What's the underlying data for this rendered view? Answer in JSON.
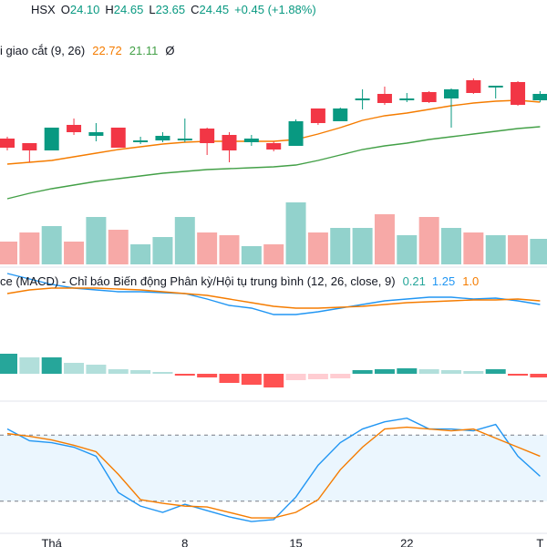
{
  "chart_data": [
    {
      "type": "candlestick",
      "exchange": "HSX",
      "ohlc_labels": [
        "O",
        "H",
        "L",
        "C"
      ],
      "ohlc_values": [
        24.1,
        24.65,
        23.65,
        24.45
      ],
      "ohlc_value_labels": [
        "24.10",
        "24.65",
        "23.65",
        "24.45"
      ],
      "change_label": "+0.45 (+1.88%)",
      "indicator": {
        "title": "i giao cắt (9, 26)",
        "values": [
          22.72,
          21.11
        ],
        "symbol": "Ø"
      },
      "up_color": "#089981",
      "down_color": "#f23645",
      "ylim": [
        14.5,
        25
      ],
      "open": [
        18.4,
        18.15,
        17.75,
        19.15,
        18.55,
        19.0,
        18.2,
        18.3,
        18.3,
        18.95,
        18.6,
        18.2,
        18.15,
        18.0,
        20.05,
        19.35,
        20.5,
        20.85,
        20.5,
        20.95,
        20.6,
        21.6,
        21.2,
        21.5,
        20.5
      ],
      "high": [
        18.5,
        18.15,
        19.0,
        19.5,
        19.25,
        19.0,
        18.5,
        18.75,
        19.5,
        19.0,
        18.75,
        18.6,
        18.25,
        19.45,
        20.05,
        20.1,
        21.1,
        21.25,
        20.9,
        21.0,
        21.15,
        21.7,
        21.3,
        21.55,
        21.0
      ],
      "low": [
        17.75,
        17.1,
        17.75,
        18.6,
        18.25,
        17.9,
        18.1,
        18.2,
        18.2,
        17.5,
        17.1,
        18.0,
        17.7,
        18.0,
        19.15,
        19.35,
        20.0,
        20.25,
        20.4,
        20.35,
        19.0,
        20.85,
        20.6,
        20.2,
        20.4
      ],
      "close": [
        17.9,
        17.75,
        19.0,
        18.75,
        18.75,
        17.9,
        18.3,
        18.55,
        18.4,
        18.15,
        17.75,
        18.4,
        17.8,
        19.35,
        19.25,
        20.05,
        20.6,
        20.35,
        20.6,
        20.4,
        21.1,
        20.9,
        21.3,
        20.25,
        20.85
      ],
      "series": [
        {
          "color": "#f57c00",
          "values": [
            17.0,
            17.1,
            17.2,
            17.4,
            17.6,
            17.8,
            17.95,
            18.1,
            18.2,
            18.25,
            18.25,
            18.25,
            18.25,
            18.35,
            18.65,
            19.0,
            19.4,
            19.65,
            19.8,
            20.0,
            20.2,
            20.35,
            20.45,
            20.5,
            20.4
          ]
        },
        {
          "color": "#43a047",
          "values": [
            15.1,
            15.4,
            15.65,
            15.85,
            16.05,
            16.2,
            16.35,
            16.5,
            16.6,
            16.7,
            16.75,
            16.8,
            16.85,
            16.95,
            17.2,
            17.5,
            17.8,
            18.0,
            18.15,
            18.35,
            18.5,
            18.65,
            18.8,
            18.95,
            19.05
          ]
        }
      ]
    },
    {
      "type": "volume",
      "up_color": "#92d2cc",
      "down_color": "#f7a9a7",
      "ylim": [
        0,
        80
      ],
      "values": [
        25,
        35,
        42,
        25,
        52,
        38,
        22,
        30,
        52,
        35,
        32,
        20,
        22,
        68,
        35,
        40,
        40,
        55,
        32,
        52,
        40,
        35,
        32,
        32,
        28
      ]
    },
    {
      "type": "macd",
      "title": "ce (MACD) - Chỉ báo Biến động Phân kỳ/Hội tụ trung bình (12, 26, close, 9)",
      "legend_values": [
        0.21,
        1.25,
        1.0
      ],
      "legend_value_labels": [
        "0.21",
        "1.25",
        "1.0"
      ],
      "legend_colors": [
        "#26a69a",
        "#2196f3",
        "#f57c00"
      ],
      "ylim": [
        -1.25,
        5.75
      ],
      "histogram": [
        1.1,
        0.9,
        0.9,
        0.6,
        0.5,
        0.25,
        0.2,
        0.1,
        -0.1,
        -0.2,
        -0.5,
        -0.6,
        -0.75,
        -0.35,
        -0.3,
        -0.25,
        0.2,
        0.25,
        0.3,
        0.25,
        0.2,
        0.15,
        0.25,
        -0.1,
        -0.2
      ],
      "histogram_colors": [
        "#26a69a",
        "#b2dfdb",
        "#ff5252",
        "#ffcdd2"
      ],
      "series": [
        {
          "color": "#2196f3",
          "values": [
            5.5,
            5.2,
            4.9,
            4.7,
            4.6,
            4.5,
            4.5,
            4.45,
            4.4,
            4.1,
            3.75,
            3.6,
            3.25,
            3.25,
            3.4,
            3.6,
            3.8,
            4.0,
            4.1,
            4.2,
            4.2,
            4.1,
            4.15,
            4.0,
            3.8
          ]
        },
        {
          "color": "#f57c00",
          "values": [
            4.4,
            4.6,
            4.7,
            4.7,
            4.7,
            4.65,
            4.6,
            4.5,
            4.4,
            4.3,
            4.1,
            3.9,
            3.7,
            3.6,
            3.6,
            3.65,
            3.7,
            3.8,
            3.9,
            3.95,
            4.0,
            4.05,
            4.05,
            4.1,
            4.0
          ]
        }
      ]
    },
    {
      "type": "line",
      "ylim": [
        0,
        100
      ],
      "bands": [
        20,
        80
      ],
      "band_color": "#e3f2fd",
      "categories": [
        null,
        null,
        "Thá",
        null,
        null,
        null,
        null,
        null,
        "8",
        null,
        null,
        null,
        null,
        "15",
        null,
        null,
        null,
        null,
        "22",
        null,
        null,
        null,
        null,
        null,
        "T"
      ],
      "series": [
        {
          "color": "#2196f3",
          "values": [
            85.5,
            74.8,
            73.1,
            69.0,
            60.8,
            27.9,
            15.6,
            9.9,
            17.3,
            11.5,
            5.8,
            1.6,
            3.3,
            23.8,
            52.6,
            73.1,
            85.5,
            92.0,
            95.3,
            85.5,
            85.5,
            83.8,
            89.6,
            60.8,
            42.7
          ]
        },
        {
          "color": "#f57c00",
          "values": [
            81.3,
            78.9,
            75.6,
            70.7,
            64.9,
            44.4,
            21.4,
            18.1,
            15.6,
            14.8,
            9.9,
            4.9,
            4.9,
            9.9,
            21.4,
            48.5,
            69.0,
            85.5,
            87.1,
            85.5,
            83.8,
            85.5,
            77.2,
            69.0,
            60.8
          ]
        }
      ]
    }
  ]
}
